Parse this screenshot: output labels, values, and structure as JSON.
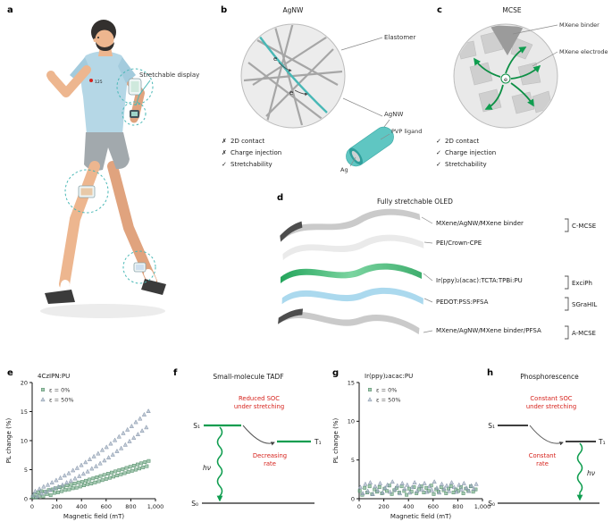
{
  "colors": {
    "teal": "#49b8b6",
    "green": "#0f9d4f",
    "red": "#d6221c",
    "marker_green_fill": "#74ac88",
    "marker_green_stroke": "#4e8a64",
    "marker_gray_fill": "#9fadc0",
    "marker_gray_stroke": "#8293a8"
  },
  "panels": {
    "a": {
      "letter": "a",
      "callout": "Stretchable display",
      "heart_rate": "125"
    },
    "b": {
      "letter": "b",
      "title": "AgNW",
      "labels": {
        "elastomer": "Elastomer",
        "agnw": "AgNW",
        "electron1": "e",
        "electron2": "e",
        "pvp_ligand": "PVP ligand",
        "ag": "Ag"
      },
      "checklist": [
        {
          "mark": "✗",
          "text": "2D contact"
        },
        {
          "mark": "✗",
          "text": "Charge injection"
        },
        {
          "mark": "✓",
          "text": "Stretchability"
        }
      ]
    },
    "c": {
      "letter": "c",
      "title": "MCSE",
      "labels": {
        "binder": "MXene binder",
        "electrode": "MXene electrode",
        "electron": "e"
      },
      "checklist": [
        {
          "mark": "✓",
          "text": "2D contact"
        },
        {
          "mark": "✓",
          "text": "Charge injection"
        },
        {
          "mark": "✓",
          "text": "Stretchability"
        }
      ]
    },
    "d": {
      "letter": "d",
      "title": "Fully stretchable OLED",
      "layers": [
        {
          "label": "MXene/AgNW/MXene binder",
          "bracket": "C-MCSE"
        },
        {
          "label": "PEI/Crown-CPE",
          "bracket": ""
        },
        {
          "label": "Ir(ppy)₂(acac):TCTA:TPBi:PU",
          "bracket": "ExciPh"
        },
        {
          "label": "PEDOT:PSS:PFSA",
          "bracket": "SGraHIL"
        },
        {
          "label": "MXene/AgNW/MXene binder/PFSA",
          "bracket": "A-MCSE"
        }
      ]
    },
    "e": {
      "letter": "e"
    },
    "f": {
      "letter": "f",
      "title": "Small-molecule TADF",
      "soc_line1": "Reduced SOC",
      "soc_line2": "under stretching",
      "rate_line1": "Decreasing",
      "rate_line2": "rate",
      "s1": "S₁",
      "t1": "T₁",
      "s0": "S₀",
      "hv": "hν"
    },
    "g": {
      "letter": "g"
    },
    "h": {
      "letter": "h",
      "title": "Phosphorescence",
      "soc_line1": "Constant SOC",
      "soc_line2": "under stretching",
      "rate_line1": "Constant",
      "rate_line2": "rate",
      "s1": "S₁",
      "t1": "T₁",
      "s0": "S₀",
      "hv": "hν"
    }
  },
  "chart_data": [
    {
      "id": "e",
      "type": "scatter",
      "title": "4CzIPN:PU",
      "xlabel": "Magnetic field (mT)",
      "ylabel": "PL change (%)",
      "xlim": [
        0,
        1000
      ],
      "ylim": [
        0,
        20
      ],
      "xticks": [
        0,
        200,
        400,
        600,
        800,
        1000
      ],
      "xtick_labels": [
        "0",
        "200",
        "400",
        "600",
        "800",
        "1,000"
      ],
      "yticks": [
        0,
        5,
        10,
        15,
        20
      ],
      "legend_position": "top-left",
      "grid": false,
      "series": [
        {
          "name": "ε = 0%",
          "marker": "square",
          "fill": "#74ac88",
          "stroke": "#4e8a64",
          "points": [
            [
              5,
              0.3
            ],
            [
              18,
              0.7
            ],
            [
              32,
              0.2
            ],
            [
              47,
              1.1
            ],
            [
              60,
              0.5
            ],
            [
              75,
              1.3
            ],
            [
              90,
              0.4
            ],
            [
              105,
              1.2
            ],
            [
              120,
              0.8
            ],
            [
              135,
              1.5
            ],
            [
              150,
              0.6
            ],
            [
              165,
              1.6
            ],
            [
              180,
              1.0
            ],
            [
              195,
              1.8
            ],
            [
              210,
              1.1
            ],
            [
              225,
              2.0
            ],
            [
              240,
              1.3
            ],
            [
              255,
              2.1
            ],
            [
              270,
              1.5
            ],
            [
              285,
              2.3
            ],
            [
              300,
              1.6
            ],
            [
              315,
              2.4
            ],
            [
              330,
              1.8
            ],
            [
              345,
              2.6
            ],
            [
              360,
              1.9
            ],
            [
              375,
              2.8
            ],
            [
              390,
              2.1
            ],
            [
              405,
              2.9
            ],
            [
              420,
              2.3
            ],
            [
              435,
              3.1
            ],
            [
              450,
              2.5
            ],
            [
              465,
              3.3
            ],
            [
              480,
              2.6
            ],
            [
              495,
              3.5
            ],
            [
              510,
              2.8
            ],
            [
              525,
              3.7
            ],
            [
              540,
              3.0
            ],
            [
              555,
              3.9
            ],
            [
              570,
              3.2
            ],
            [
              585,
              4.1
            ],
            [
              600,
              3.4
            ],
            [
              615,
              4.3
            ],
            [
              630,
              3.6
            ],
            [
              645,
              4.5
            ],
            [
              660,
              3.8
            ],
            [
              675,
              4.7
            ],
            [
              690,
              4.0
            ],
            [
              705,
              4.9
            ],
            [
              720,
              4.2
            ],
            [
              735,
              5.1
            ],
            [
              750,
              4.4
            ],
            [
              765,
              5.3
            ],
            [
              780,
              4.6
            ],
            [
              795,
              5.5
            ],
            [
              810,
              4.8
            ],
            [
              825,
              5.7
            ],
            [
              840,
              5.0
            ],
            [
              855,
              5.9
            ],
            [
              870,
              5.2
            ],
            [
              885,
              6.1
            ],
            [
              900,
              5.4
            ],
            [
              915,
              6.3
            ],
            [
              930,
              5.6
            ],
            [
              945,
              6.5
            ]
          ]
        },
        {
          "name": "ε = 50%",
          "marker": "triangle",
          "fill": "#9fadc0",
          "stroke": "#8293a8",
          "points": [
            [
              8,
              0.6
            ],
            [
              25,
              1.3
            ],
            [
              42,
              0.4
            ],
            [
              59,
              1.7
            ],
            [
              76,
              0.9
            ],
            [
              93,
              2.1
            ],
            [
              110,
              1.2
            ],
            [
              127,
              2.4
            ],
            [
              144,
              1.5
            ],
            [
              161,
              2.8
            ],
            [
              178,
              1.8
            ],
            [
              195,
              3.2
            ],
            [
              212,
              2.1
            ],
            [
              229,
              3.6
            ],
            [
              246,
              2.4
            ],
            [
              263,
              4.0
            ],
            [
              280,
              2.8
            ],
            [
              297,
              4.4
            ],
            [
              314,
              3.1
            ],
            [
              331,
              4.9
            ],
            [
              348,
              3.5
            ],
            [
              365,
              5.3
            ],
            [
              382,
              3.9
            ],
            [
              399,
              5.8
            ],
            [
              416,
              4.3
            ],
            [
              433,
              6.3
            ],
            [
              450,
              4.7
            ],
            [
              467,
              6.8
            ],
            [
              484,
              5.2
            ],
            [
              501,
              7.3
            ],
            [
              518,
              5.6
            ],
            [
              535,
              7.8
            ],
            [
              552,
              6.1
            ],
            [
              569,
              8.4
            ],
            [
              586,
              6.6
            ],
            [
              603,
              8.9
            ],
            [
              620,
              7.1
            ],
            [
              637,
              9.5
            ],
            [
              654,
              7.6
            ],
            [
              671,
              10.1
            ],
            [
              688,
              8.2
            ],
            [
              705,
              10.7
            ],
            [
              722,
              8.7
            ],
            [
              739,
              11.3
            ],
            [
              756,
              9.3
            ],
            [
              773,
              11.9
            ],
            [
              790,
              9.9
            ],
            [
              807,
              12.5
            ],
            [
              824,
              10.5
            ],
            [
              841,
              13.2
            ],
            [
              858,
              11.1
            ],
            [
              875,
              13.8
            ],
            [
              892,
              11.7
            ],
            [
              909,
              14.5
            ],
            [
              926,
              12.3
            ],
            [
              943,
              15.1
            ]
          ]
        }
      ]
    },
    {
      "id": "g",
      "type": "scatter",
      "title": "Ir(ppy)₂acac:PU",
      "xlabel": "Magnetic field (mT)",
      "ylabel": "PL change (%)",
      "xlim": [
        0,
        1000
      ],
      "ylim": [
        0,
        15
      ],
      "xticks": [
        0,
        200,
        400,
        600,
        800,
        1000
      ],
      "xtick_labels": [
        "0",
        "200",
        "400",
        "600",
        "800",
        "1,000"
      ],
      "yticks": [
        0,
        5,
        10,
        15
      ],
      "legend_position": "top-left",
      "grid": false,
      "series": [
        {
          "name": "ε = 0%",
          "marker": "square",
          "fill": "#74ac88",
          "stroke": "#4e8a64",
          "points": [
            [
              5,
              1.0
            ],
            [
              25,
              0.5
            ],
            [
              45,
              1.4
            ],
            [
              65,
              0.8
            ],
            [
              85,
              1.6
            ],
            [
              105,
              0.6
            ],
            [
              125,
              1.2
            ],
            [
              145,
              0.9
            ],
            [
              165,
              1.5
            ],
            [
              185,
              0.7
            ],
            [
              205,
              1.3
            ],
            [
              225,
              1.0
            ],
            [
              245,
              1.7
            ],
            [
              265,
              0.6
            ],
            [
              285,
              1.1
            ],
            [
              305,
              1.4
            ],
            [
              325,
              0.8
            ],
            [
              345,
              1.6
            ],
            [
              365,
              1.0
            ],
            [
              385,
              0.5
            ],
            [
              405,
              1.3
            ],
            [
              425,
              0.9
            ],
            [
              445,
              1.5
            ],
            [
              465,
              0.7
            ],
            [
              485,
              1.2
            ],
            [
              505,
              1.6
            ],
            [
              525,
              0.8
            ],
            [
              545,
              1.4
            ],
            [
              565,
              1.0
            ],
            [
              585,
              1.7
            ],
            [
              605,
              0.6
            ],
            [
              625,
              1.2
            ],
            [
              645,
              0.9
            ],
            [
              665,
              1.5
            ],
            [
              685,
              1.1
            ],
            [
              705,
              0.7
            ],
            [
              725,
              1.3
            ],
            [
              745,
              1.6
            ],
            [
              765,
              0.8
            ],
            [
              785,
              1.2
            ],
            [
              805,
              1.0
            ],
            [
              825,
              1.5
            ],
            [
              845,
              0.7
            ],
            [
              865,
              1.3
            ],
            [
              885,
              1.0
            ],
            [
              905,
              1.6
            ],
            [
              925,
              0.9
            ],
            [
              945,
              1.2
            ]
          ]
        },
        {
          "name": "ε = 50%",
          "marker": "triangle",
          "fill": "#9fadc0",
          "stroke": "#8293a8",
          "points": [
            [
              10,
              1.5
            ],
            [
              30,
              0.7
            ],
            [
              50,
              1.9
            ],
            [
              70,
              1.0
            ],
            [
              90,
              2.1
            ],
            [
              110,
              0.6
            ],
            [
              130,
              1.6
            ],
            [
              150,
              1.1
            ],
            [
              170,
              2.0
            ],
            [
              190,
              0.8
            ],
            [
              210,
              1.4
            ],
            [
              230,
              1.8
            ],
            [
              250,
              0.9
            ],
            [
              270,
              2.2
            ],
            [
              290,
              1.2
            ],
            [
              310,
              1.7
            ],
            [
              330,
              0.7
            ],
            [
              350,
              2.0
            ],
            [
              370,
              1.3
            ],
            [
              390,
              1.8
            ],
            [
              410,
              0.8
            ],
            [
              430,
              1.5
            ],
            [
              450,
              2.1
            ],
            [
              470,
              1.0
            ],
            [
              490,
              1.7
            ],
            [
              510,
              1.2
            ],
            [
              530,
              2.0
            ],
            [
              550,
              0.9
            ],
            [
              570,
              1.6
            ],
            [
              590,
              1.1
            ],
            [
              610,
              2.2
            ],
            [
              630,
              1.4
            ],
            [
              650,
              0.8
            ],
            [
              670,
              1.9
            ],
            [
              690,
              1.3
            ],
            [
              710,
              1.7
            ],
            [
              730,
              1.0
            ],
            [
              750,
              2.1
            ],
            [
              770,
              1.5
            ],
            [
              790,
              0.9
            ],
            [
              810,
              1.8
            ],
            [
              830,
              1.2
            ],
            [
              850,
              2.0
            ],
            [
              870,
              1.4
            ],
            [
              890,
              1.0
            ],
            [
              910,
              1.7
            ],
            [
              930,
              1.3
            ],
            [
              950,
              1.9
            ]
          ]
        }
      ]
    }
  ]
}
